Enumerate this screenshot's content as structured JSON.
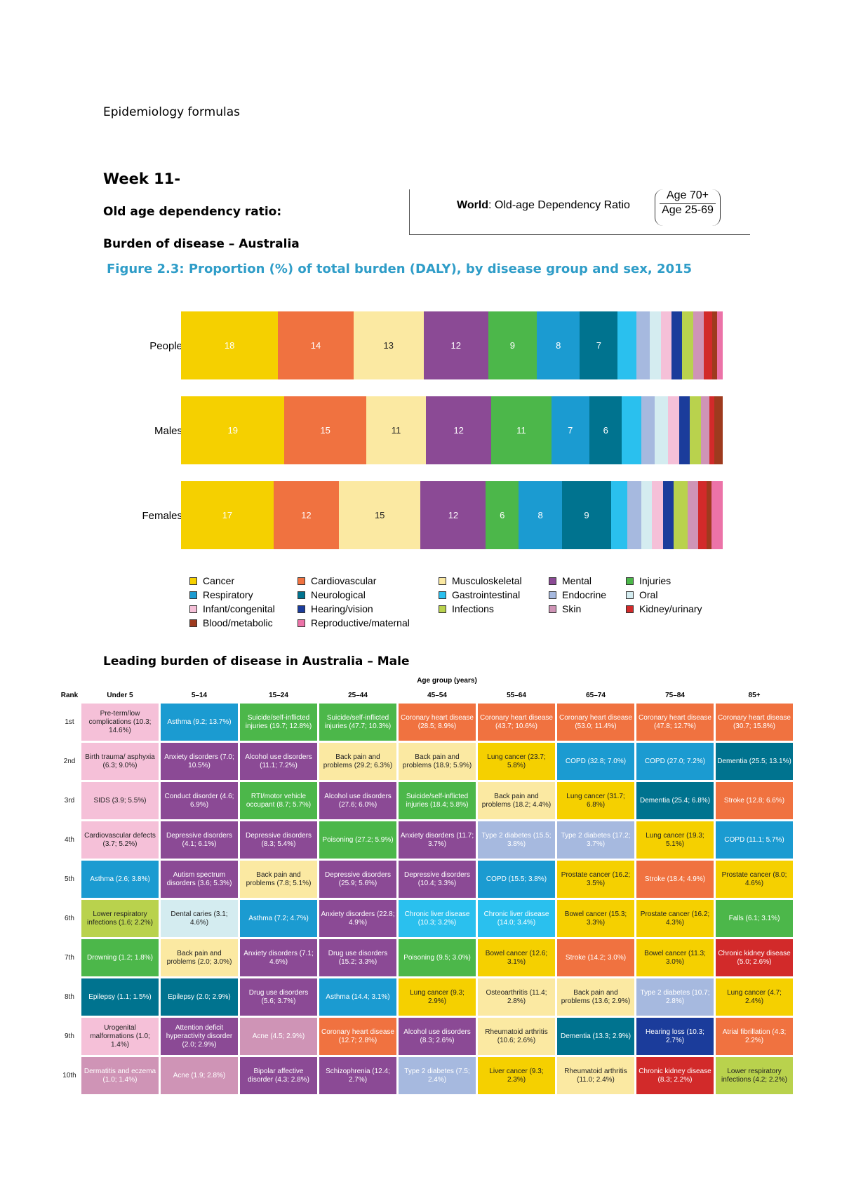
{
  "page": {
    "title": "Epidemiology formulas",
    "week": "Week 11-",
    "old_age_label": "Old age dependency ratio:",
    "burden_label": "Burden of disease – Australia",
    "leading_label": "Leading burden of disease in Australia – Male"
  },
  "formula": {
    "prefix": "World",
    "text": ": Old-age Dependency Ratio",
    "numerator": "Age 70+",
    "denominator": "Age 25-69"
  },
  "figure": {
    "title": "Figure 2.3: Proportion (%) of total burden (DALY), by disease group and sex, 2015"
  },
  "chart_data": {
    "type": "bar",
    "stacked": true,
    "orientation": "horizontal",
    "title": "Figure 2.3: Proportion (%) of total burden (DALY), by disease group and sex, 2015",
    "categories": [
      "People",
      "Males",
      "Females"
    ],
    "series": [
      {
        "name": "Cancer",
        "color": "#f5d000",
        "values": [
          18,
          19,
          17
        ]
      },
      {
        "name": "Cardiovascular",
        "color": "#f07240",
        "values": [
          14,
          15,
          12
        ]
      },
      {
        "name": "Musculoskeletal",
        "color": "#fbe9a2",
        "values": [
          13,
          11,
          15
        ]
      },
      {
        "name": "Mental",
        "color": "#8b4a95",
        "values": [
          12,
          12,
          12
        ]
      },
      {
        "name": "Injuries",
        "color": "#4cb74a",
        "values": [
          9,
          11,
          6
        ]
      },
      {
        "name": "Respiratory",
        "color": "#1b9bd1",
        "values": [
          8,
          7,
          8
        ]
      },
      {
        "name": "Neurological",
        "color": "#00738f",
        "values": [
          7,
          6,
          9
        ]
      },
      {
        "name": "Gastrointestinal",
        "color": "#2ac0ee",
        "values": [
          3.5,
          3.5,
          3
        ]
      },
      {
        "name": "Endocrine",
        "color": "#a6b9df",
        "values": [
          2.5,
          2.5,
          2.5
        ]
      },
      {
        "name": "Oral",
        "color": "#d4ecf0",
        "values": [
          2,
          2.5,
          2
        ]
      },
      {
        "name": "Infant/congenital",
        "color": "#f5c0d8",
        "values": [
          2,
          2,
          2
        ]
      },
      {
        "name": "Hearing/vision",
        "color": "#1b3c9b",
        "values": [
          2,
          2,
          2
        ]
      },
      {
        "name": "Infections",
        "color": "#b9d24d",
        "values": [
          2,
          2,
          2.5
        ]
      },
      {
        "name": "Skin",
        "color": "#cf94b6",
        "values": [
          2,
          1.5,
          2
        ]
      },
      {
        "name": "Kidney/urinary",
        "color": "#d22a2a",
        "values": [
          1.5,
          1,
          1.5
        ]
      },
      {
        "name": "Blood/metabolic",
        "color": "#9e3a1e",
        "values": [
          1,
          1.5,
          1
        ]
      },
      {
        "name": "Reproductive/maternal",
        "color": "#ec73a8",
        "values": [
          1,
          0,
          2
        ]
      }
    ],
    "value_labels": [
      [
        "18",
        "14",
        "13",
        "12",
        "9",
        "8",
        "7"
      ],
      [
        "19",
        "15",
        "11",
        "12",
        "11",
        "7",
        "6"
      ],
      [
        "17",
        "12",
        "15",
        "12",
        "6",
        "8",
        "9"
      ]
    ]
  },
  "legend": [
    {
      "label": "Cancer",
      "color": "#f5d000"
    },
    {
      "label": "Cardiovascular",
      "color": "#f07240"
    },
    {
      "label": "Musculoskeletal",
      "color": "#fbe9a2"
    },
    {
      "label": "Mental",
      "color": "#8b4a95"
    },
    {
      "label": "Injuries",
      "color": "#4cb74a"
    },
    {
      "label": "Respiratory",
      "color": "#1b9bd1"
    },
    {
      "label": "Neurological",
      "color": "#00738f"
    },
    {
      "label": "Gastrointestinal",
      "color": "#2ac0ee"
    },
    {
      "label": "Endocrine",
      "color": "#a6b9df"
    },
    {
      "label": "Oral",
      "color": "#d4ecf0"
    },
    {
      "label": "Infant/congenital",
      "color": "#f5c0d8"
    },
    {
      "label": "Hearing/vision",
      "color": "#1b3c9b"
    },
    {
      "label": "Infections",
      "color": "#b9d24d"
    },
    {
      "label": "Skin",
      "color": "#cf94b6"
    },
    {
      "label": "Kidney/urinary",
      "color": "#d22a2a"
    },
    {
      "label": "Blood/metabolic",
      "color": "#9e3a1e"
    },
    {
      "label": "Reproductive/maternal",
      "color": "#ec73a8"
    }
  ],
  "table": {
    "age_group_title": "Age group (years)",
    "rank_header": "Rank",
    "columns": [
      "Under 5",
      "5–14",
      "15–24",
      "25–44",
      "45–54",
      "55–64",
      "65–74",
      "75–84",
      "85+"
    ],
    "ranks": [
      "1st",
      "2nd",
      "3rd",
      "4th",
      "5th",
      "6th",
      "7th",
      "8th",
      "9th",
      "10th"
    ],
    "rows": [
      [
        {
          "text": "Pre-term/low complications (10.3; 14.6%)",
          "cat": "Infant/congenital"
        },
        {
          "text": "Asthma (9.2; 13.7%)",
          "cat": "Respiratory"
        },
        {
          "text": "Suicide/self-inflicted injuries (19.7; 12.8%)",
          "cat": "Injuries"
        },
        {
          "text": "Suicide/self-inflicted injuries (47.7; 10.3%)",
          "cat": "Injuries"
        },
        {
          "text": "Coronary heart disease (28.5; 8.9%)",
          "cat": "Cardiovascular"
        },
        {
          "text": "Coronary heart disease (43.7; 10.6%)",
          "cat": "Cardiovascular"
        },
        {
          "text": "Coronary heart disease (53.0; 11.4%)",
          "cat": "Cardiovascular"
        },
        {
          "text": "Coronary heart disease (47.8; 12.7%)",
          "cat": "Cardiovascular"
        },
        {
          "text": "Coronary heart disease (30.7; 15.8%)",
          "cat": "Cardiovascular"
        }
      ],
      [
        {
          "text": "Birth trauma/ asphyxia (6.3; 9.0%)",
          "cat": "Infant/congenital"
        },
        {
          "text": "Anxiety disorders (7.0; 10.5%)",
          "cat": "Mental"
        },
        {
          "text": "Alcohol use disorders (11.1; 7.2%)",
          "cat": "Mental"
        },
        {
          "text": "Back pain and problems (29.2; 6.3%)",
          "cat": "Musculoskeletal"
        },
        {
          "text": "Back pain and problems (18.9; 5.9%)",
          "cat": "Musculoskeletal"
        },
        {
          "text": "Lung cancer (23.7; 5.8%)",
          "cat": "Cancer"
        },
        {
          "text": "COPD (32.8; 7.0%)",
          "cat": "Respiratory"
        },
        {
          "text": "COPD (27.0; 7.2%)",
          "cat": "Respiratory"
        },
        {
          "text": "Dementia (25.5; 13.1%)",
          "cat": "Neurological"
        }
      ],
      [
        {
          "text": "SIDS (3.9; 5.5%)",
          "cat": "Infant/congenital"
        },
        {
          "text": "Conduct disorder (4.6; 6.9%)",
          "cat": "Mental"
        },
        {
          "text": "RTI/motor vehicle occupant (8.7; 5.7%)",
          "cat": "Injuries"
        },
        {
          "text": "Alcohol use disorders (27.6; 6.0%)",
          "cat": "Mental"
        },
        {
          "text": "Suicide/self-inflicted injuries (18.4; 5.8%)",
          "cat": "Injuries"
        },
        {
          "text": "Back pain and problems (18.2; 4.4%)",
          "cat": "Musculoskeletal"
        },
        {
          "text": "Lung cancer (31.7; 6.8%)",
          "cat": "Cancer"
        },
        {
          "text": "Dementia (25.4; 6.8%)",
          "cat": "Neurological"
        },
        {
          "text": "Stroke (12.8; 6.6%)",
          "cat": "Cardiovascular"
        }
      ],
      [
        {
          "text": "Cardiovascular defects (3.7; 5.2%)",
          "cat": "Infant/congenital"
        },
        {
          "text": "Depressive disorders (4.1; 6.1%)",
          "cat": "Mental"
        },
        {
          "text": "Depressive disorders (8.3; 5.4%)",
          "cat": "Mental"
        },
        {
          "text": "Poisoning (27.2; 5.9%)",
          "cat": "Injuries"
        },
        {
          "text": "Anxiety disorders (11.7; 3.7%)",
          "cat": "Mental"
        },
        {
          "text": "Type 2 diabetes (15.5; 3.8%)",
          "cat": "Endocrine"
        },
        {
          "text": "Type 2 diabetes (17.2; 3.7%)",
          "cat": "Endocrine"
        },
        {
          "text": "Lung cancer (19.3; 5.1%)",
          "cat": "Cancer"
        },
        {
          "text": "COPD (11.1; 5.7%)",
          "cat": "Respiratory"
        }
      ],
      [
        {
          "text": "Asthma (2.6; 3.8%)",
          "cat": "Respiratory"
        },
        {
          "text": "Autism spectrum disorders (3.6; 5.3%)",
          "cat": "Mental"
        },
        {
          "text": "Back pain and problems (7.8; 5.1%)",
          "cat": "Musculoskeletal"
        },
        {
          "text": "Depressive disorders (25.9; 5.6%)",
          "cat": "Mental"
        },
        {
          "text": "Depressive disorders (10.4; 3.3%)",
          "cat": "Mental"
        },
        {
          "text": "COPD (15.5; 3.8%)",
          "cat": "Respiratory"
        },
        {
          "text": "Prostate cancer (16.2; 3.5%)",
          "cat": "Cancer"
        },
        {
          "text": "Stroke (18.4; 4.9%)",
          "cat": "Cardiovascular"
        },
        {
          "text": "Prostate cancer (8.0; 4.6%)",
          "cat": "Cancer"
        }
      ],
      [
        {
          "text": "Lower respiratory infections (1.6; 2.2%)",
          "cat": "Infections"
        },
        {
          "text": "Dental caries (3.1; 4.6%)",
          "cat": "Oral"
        },
        {
          "text": "Asthma (7.2; 4.7%)",
          "cat": "Respiratory"
        },
        {
          "text": "Anxiety disorders (22.8; 4.9%)",
          "cat": "Mental"
        },
        {
          "text": "Chronic liver disease (10.3; 3.2%)",
          "cat": "Gastrointestinal"
        },
        {
          "text": "Chronic liver disease (14.0; 3.4%)",
          "cat": "Gastrointestinal"
        },
        {
          "text": "Bowel cancer (15.3; 3.3%)",
          "cat": "Cancer"
        },
        {
          "text": "Prostate cancer (16.2; 4.3%)",
          "cat": "Cancer"
        },
        {
          "text": "Falls (6.1; 3.1%)",
          "cat": "Injuries"
        }
      ],
      [
        {
          "text": "Drowning (1.2; 1.8%)",
          "cat": "Injuries"
        },
        {
          "text": "Back pain and problems (2.0; 3.0%)",
          "cat": "Musculoskeletal"
        },
        {
          "text": "Anxiety disorders (7.1; 4.6%)",
          "cat": "Mental"
        },
        {
          "text": "Drug use disorders (15.2; 3.3%)",
          "cat": "Mental"
        },
        {
          "text": "Poisoning (9.5; 3.0%)",
          "cat": "Injuries"
        },
        {
          "text": "Bowel cancer (12.6; 3.1%)",
          "cat": "Cancer"
        },
        {
          "text": "Stroke (14.2; 3.0%)",
          "cat": "Cardiovascular"
        },
        {
          "text": "Bowel cancer (11.3; 3.0%)",
          "cat": "Cancer"
        },
        {
          "text": "Chronic kidney disease (5.0; 2.6%)",
          "cat": "Kidney/urinary"
        }
      ],
      [
        {
          "text": "Epilepsy (1.1; 1.5%)",
          "cat": "Neurological"
        },
        {
          "text": "Epilepsy (2.0; 2.9%)",
          "cat": "Neurological"
        },
        {
          "text": "Drug use disorders (5.6; 3.7%)",
          "cat": "Mental"
        },
        {
          "text": "Asthma (14.4; 3.1%)",
          "cat": "Respiratory"
        },
        {
          "text": "Lung cancer (9.3; 2.9%)",
          "cat": "Cancer"
        },
        {
          "text": "Osteoarthritis (11.4; 2.8%)",
          "cat": "Musculoskeletal"
        },
        {
          "text": "Back pain and problems (13.6; 2.9%)",
          "cat": "Musculoskeletal"
        },
        {
          "text": "Type 2 diabetes (10.7; 2.8%)",
          "cat": "Endocrine"
        },
        {
          "text": "Lung cancer (4.7; 2.4%)",
          "cat": "Cancer"
        }
      ],
      [
        {
          "text": "Urogenital malformations (1.0; 1.4%)",
          "cat": "Infant/congenital"
        },
        {
          "text": "Attention deficit hyperactivity disorder (2.0; 2.9%)",
          "cat": "Mental"
        },
        {
          "text": "Acne (4.5; 2.9%)",
          "cat": "Skin"
        },
        {
          "text": "Coronary heart disease (12.7; 2.8%)",
          "cat": "Cardiovascular"
        },
        {
          "text": "Alcohol use disorders (8.3; 2.6%)",
          "cat": "Mental"
        },
        {
          "text": "Rheumatoid arthritis (10.6; 2.6%)",
          "cat": "Musculoskeletal"
        },
        {
          "text": "Dementia (13.3; 2.9%)",
          "cat": "Neurological"
        },
        {
          "text": "Hearing loss (10.3; 2.7%)",
          "cat": "Hearing/vision"
        },
        {
          "text": "Atrial fibrillation (4.3; 2.2%)",
          "cat": "Cardiovascular"
        }
      ],
      [
        {
          "text": "Dermatitis and eczema (1.0; 1.4%)",
          "cat": "Skin"
        },
        {
          "text": "Acne (1.9; 2.8%)",
          "cat": "Skin"
        },
        {
          "text": "Bipolar affective disorder (4.3; 2.8%)",
          "cat": "Mental"
        },
        {
          "text": "Schizophrenia (12.4; 2.7%)",
          "cat": "Mental"
        },
        {
          "text": "Type 2 diabetes (7.5; 2.4%)",
          "cat": "Endocrine"
        },
        {
          "text": "Liver cancer (9.3; 2.3%)",
          "cat": "Cancer"
        },
        {
          "text": "Rheumatoid arthritis (11.0; 2.4%)",
          "cat": "Musculoskeletal"
        },
        {
          "text": "Chronic kidney disease (8.3; 2.2%)",
          "cat": "Kidney/urinary"
        },
        {
          "text": "Lower respiratory infections (4.2; 2.2%)",
          "cat": "Infections"
        }
      ]
    ]
  }
}
